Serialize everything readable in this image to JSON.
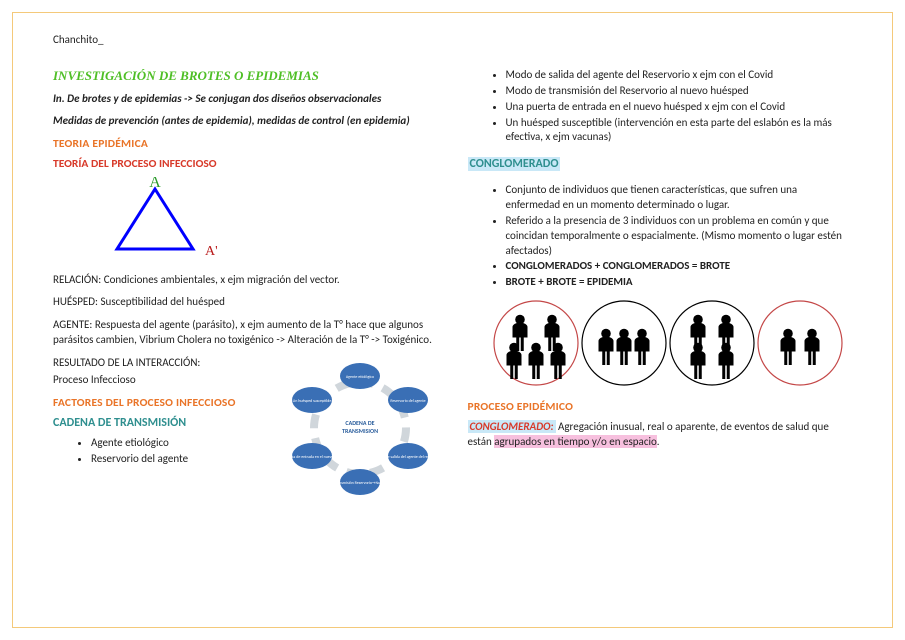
{
  "header": "Chanchito_",
  "left": {
    "title": "INVESTIGACIÓN DE BROTES O EPIDEMIAS",
    "sub1": "In. De brotes y de epidemias -> Se conjugan dos diseños observacionales",
    "sub2": "Medidas de prevención (antes de epidemia), medidas de control (en epidemia)",
    "h_teoria": "TEORIA EPIDÉMICA",
    "h_proceso": "TEORÍA DEL PROCESO INFECCIOSO",
    "triangle": {
      "stroke": "#0000ff",
      "label_a": "A",
      "label_a_color": "#2e9b2e",
      "label_a2": "A'",
      "label_a2_color": "#b91b1b"
    },
    "relacion": "RELACIÓN: Condiciones ambientales, x ejm migración del vector.",
    "huesped": "HUÉSPED: Susceptibilidad del huésped",
    "agente": "AGENTE: Respuesta del agente (parásito), x ejm aumento de la T° hace que algunos parásitos cambien, Vibrium Cholera no toxigénico -> Alteración de la T° -> Toxigénico.",
    "resultado_l1": "RESULTADO DE LA INTERACCIÓN:",
    "resultado_l2": "Proceso Infeccioso",
    "h_factores": "FACTORES DEL PROCESO INFECCIOSO",
    "h_cadena": "CADENA DE TRANSMISIÓN",
    "cadena_items": [
      "Agente etiológico",
      "Reservorio del agente"
    ],
    "cadena_center": "CADENA DE TRANSMISION",
    "cadena_nodes": [
      "Agente etiológico",
      "Reservorio del agente",
      "Modo de salida del agente del reservorio",
      "Modo de transmisión Reservorio→Nuevo huésped",
      "Vía o puerta de entrada en el nuevo huésped",
      "Un huésped susceptible"
    ],
    "cadena_colors": {
      "node": "#3a6fb5",
      "center_bg": "#ffffff",
      "center_text": "#2b5e9c",
      "arrow": "#d0d6db"
    }
  },
  "right": {
    "top_items": [
      "Modo de salida del agente del Reservorio x ejm con el Covid",
      "Modo de transmisión del Reservorio al nuevo huésped",
      "Una puerta de entrada en el nuevo huésped x ejm con el Covid",
      "Un huésped susceptible (intervención en esta parte del eslabón es la más efectiva, x ejm vacunas)"
    ],
    "h_conglomerado": "CONGLOMERADO",
    "cong_items": [
      "Conjunto de individuos que tienen características, que sufren una enfermedad en un momento determinado o lugar.",
      "Referido a la presencia de 3 individuos con un problema en común y que coincidan temporalmente o espacialmente. (Mismo momento o lugar estén afectados)"
    ],
    "cong_bold1": "CONGLOMERADOS + CONGLOMERADOS = BROTE",
    "cong_bold2": "BROTE + BROTE = EPIDEMIA",
    "people": {
      "circle_colors": [
        "#c44848",
        "#000000",
        "#000000",
        "#c44848"
      ],
      "counts": [
        5,
        3,
        4,
        2
      ],
      "person_color": "#000000"
    },
    "h_proc_epi": "PROCESO EPIDÉMICO",
    "cong_def_term": "CONGLOMERADO:",
    "cong_def_text_a": " Agregación inusual, real o aparente, de eventos de salud que están ",
    "cong_def_hl": "agrupados en tiempo y/o en espacio",
    "cong_def_text_b": "."
  }
}
